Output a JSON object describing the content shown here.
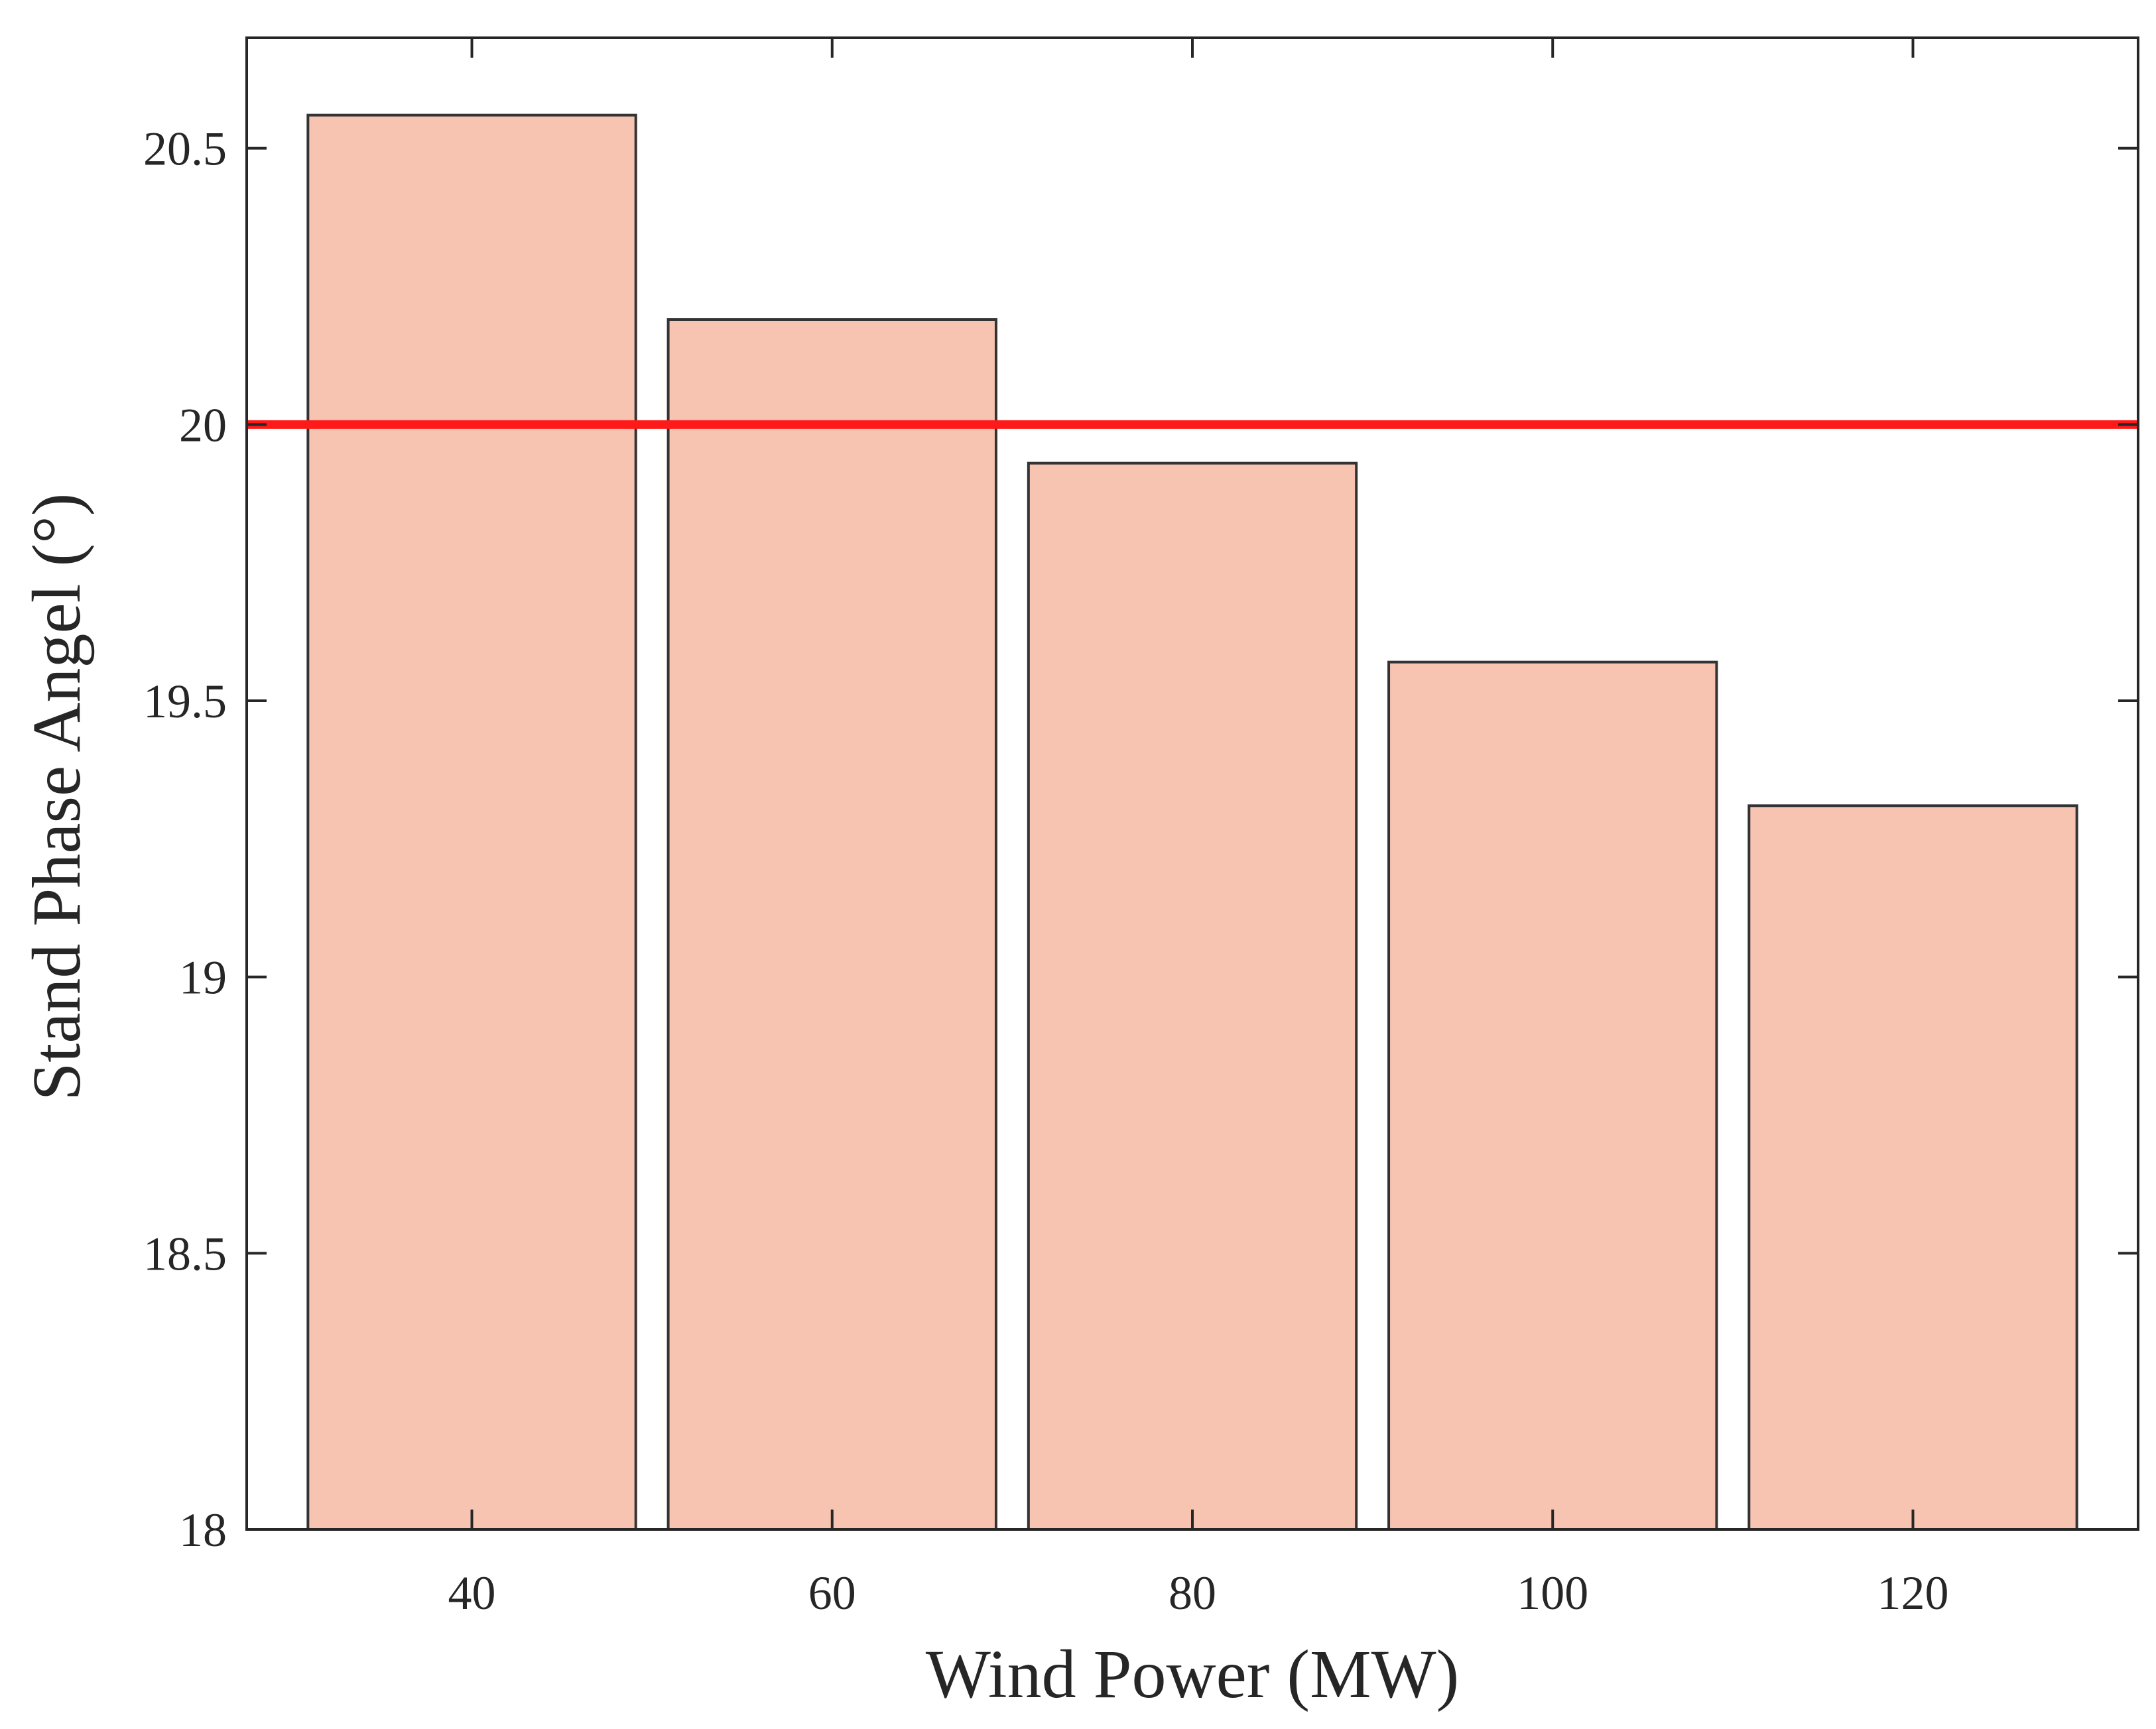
{
  "chart_data": {
    "type": "bar",
    "categories": [
      "40",
      "60",
      "80",
      "100",
      "120"
    ],
    "values": [
      20.56,
      20.19,
      19.93,
      19.57,
      19.31
    ],
    "xlabel": "Wind Power (MW)",
    "ylabel": "Stand  Phase  Angel (°)",
    "xlim": [
      27.5,
      132.5
    ],
    "ylim": [
      18,
      20.7
    ],
    "yticks": [
      "18",
      "18.5",
      "19",
      "19.5",
      "20",
      "20.5"
    ],
    "reference_line": {
      "y": 20,
      "color": "#ff1a1a"
    },
    "bar_color": "#f8c4b2",
    "bar_edge_color": "#333333",
    "grid": false,
    "box": true
  }
}
